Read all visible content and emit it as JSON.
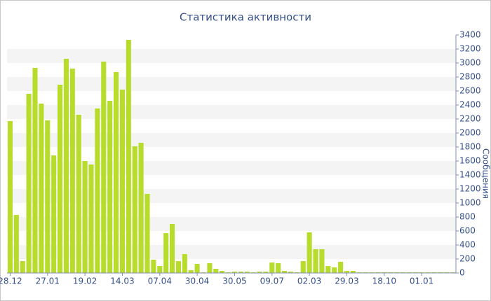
{
  "chart_data": {
    "type": "bar",
    "title": "Статистика активности",
    "y_label": "Сообщения",
    "categories": [
      "28.12",
      null,
      null,
      null,
      null,
      null,
      "27.01",
      null,
      null,
      null,
      null,
      null,
      "19.02",
      null,
      null,
      null,
      null,
      null,
      "14.03",
      null,
      null,
      null,
      null,
      null,
      "07.04",
      null,
      null,
      null,
      null,
      null,
      "30.04",
      null,
      null,
      null,
      null,
      null,
      "30.05",
      null,
      null,
      null,
      null,
      null,
      "09.07",
      null,
      null,
      null,
      null,
      null,
      "02.03",
      null,
      null,
      null,
      null,
      null,
      "29.03",
      null,
      null,
      null,
      null,
      null,
      "18.10",
      null,
      null,
      null,
      null,
      null,
      "01.01",
      null,
      null,
      null,
      null,
      null
    ],
    "values": [
      2170,
      830,
      170,
      2560,
      2930,
      2420,
      2180,
      1680,
      2690,
      3060,
      2920,
      2260,
      1600,
      1550,
      2350,
      3020,
      2460,
      2870,
      2620,
      3330,
      1810,
      1860,
      1130,
      190,
      100,
      570,
      700,
      170,
      270,
      40,
      130,
      10,
      140,
      60,
      30,
      10,
      20,
      20,
      20,
      10,
      20,
      20,
      150,
      140,
      30,
      20,
      10,
      170,
      580,
      340,
      340,
      100,
      80,
      160,
      30,
      30,
      10,
      10,
      10,
      10,
      10,
      10,
      10,
      10,
      10,
      10,
      10,
      10,
      10,
      10,
      10,
      10
    ],
    "color": "#b8dc2c",
    "ylim": [
      0,
      3400
    ],
    "yticks": [
      0,
      200,
      400,
      600,
      800,
      1000,
      1200,
      1400,
      1600,
      1800,
      2000,
      2200,
      2400,
      2600,
      2800,
      3000,
      3200,
      3400
    ],
    "grid": true
  }
}
